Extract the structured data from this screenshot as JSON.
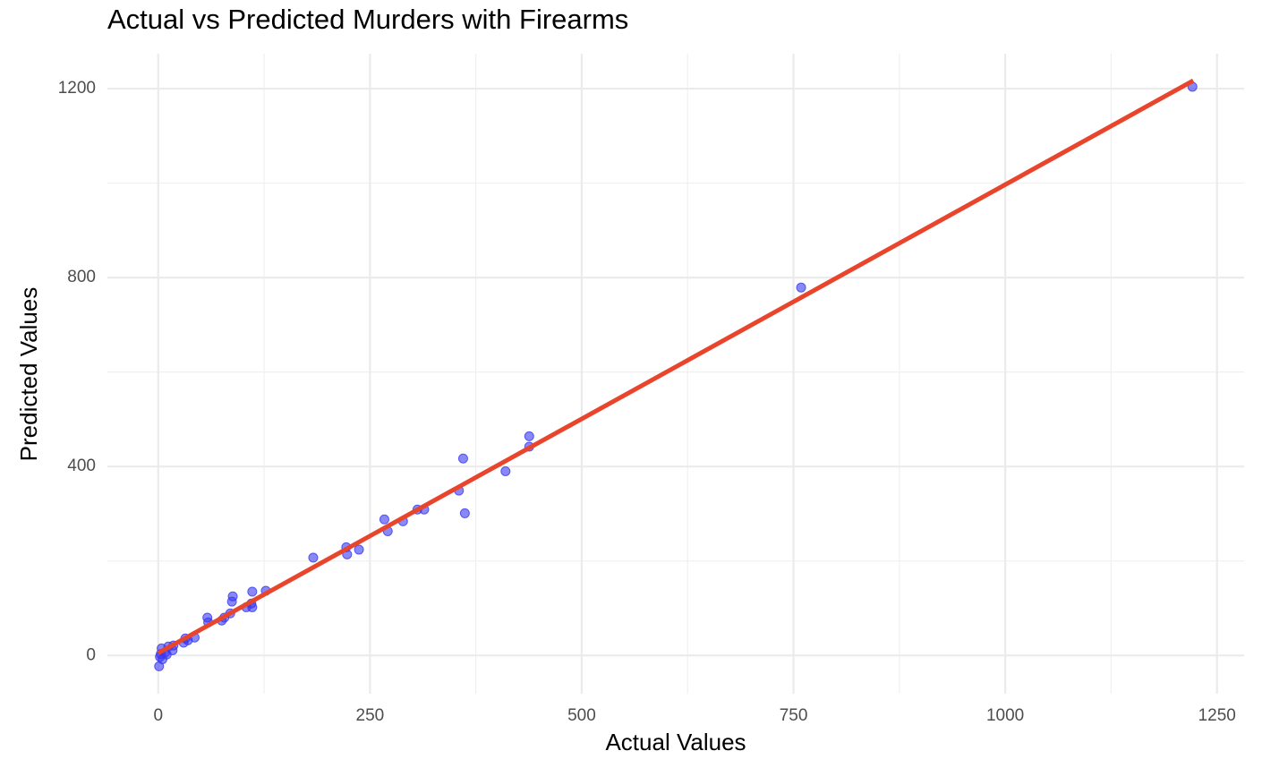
{
  "chart_data": {
    "type": "scatter",
    "title": "Actual vs Predicted Murders with Firearms",
    "x_label": "Actual Values",
    "y_label": "Predicted Values",
    "xlim": [
      -60,
      1282
    ],
    "ylim": [
      -81,
      1274
    ],
    "xticks": [
      0,
      250,
      500,
      750,
      1000,
      1250
    ],
    "yticks": [
      0,
      400,
      800,
      1200
    ],
    "x_minor_ticks": [
      125,
      375,
      625,
      875,
      1125
    ],
    "y_minor_ticks": [
      200,
      600,
      1000
    ],
    "grid": true,
    "points": {
      "color": "#3838f0",
      "x": [
        1221,
        759,
        438,
        438,
        360,
        410,
        355,
        362,
        306,
        314,
        267,
        271,
        289,
        183,
        222,
        223,
        237,
        88,
        111,
        127,
        87,
        104,
        110,
        111,
        85,
        78,
        75,
        58,
        59,
        43,
        32,
        30,
        35,
        18,
        12,
        17,
        8,
        4,
        5,
        3,
        10,
        2,
        1
      ],
      "y": [
        1204,
        779,
        464,
        442,
        417,
        390,
        349,
        301,
        309,
        309,
        288,
        263,
        284,
        207,
        229,
        214,
        224,
        125,
        135,
        137,
        114,
        102,
        110,
        102,
        89,
        80,
        74,
        80,
        70,
        38,
        36,
        27,
        32,
        21,
        19,
        11,
        6,
        15,
        -8,
        3,
        2,
        -3,
        -23
      ]
    },
    "fit_line": {
      "color": "#e8452c",
      "x": [
        0,
        1222
      ],
      "y": [
        5,
        1217
      ]
    }
  }
}
